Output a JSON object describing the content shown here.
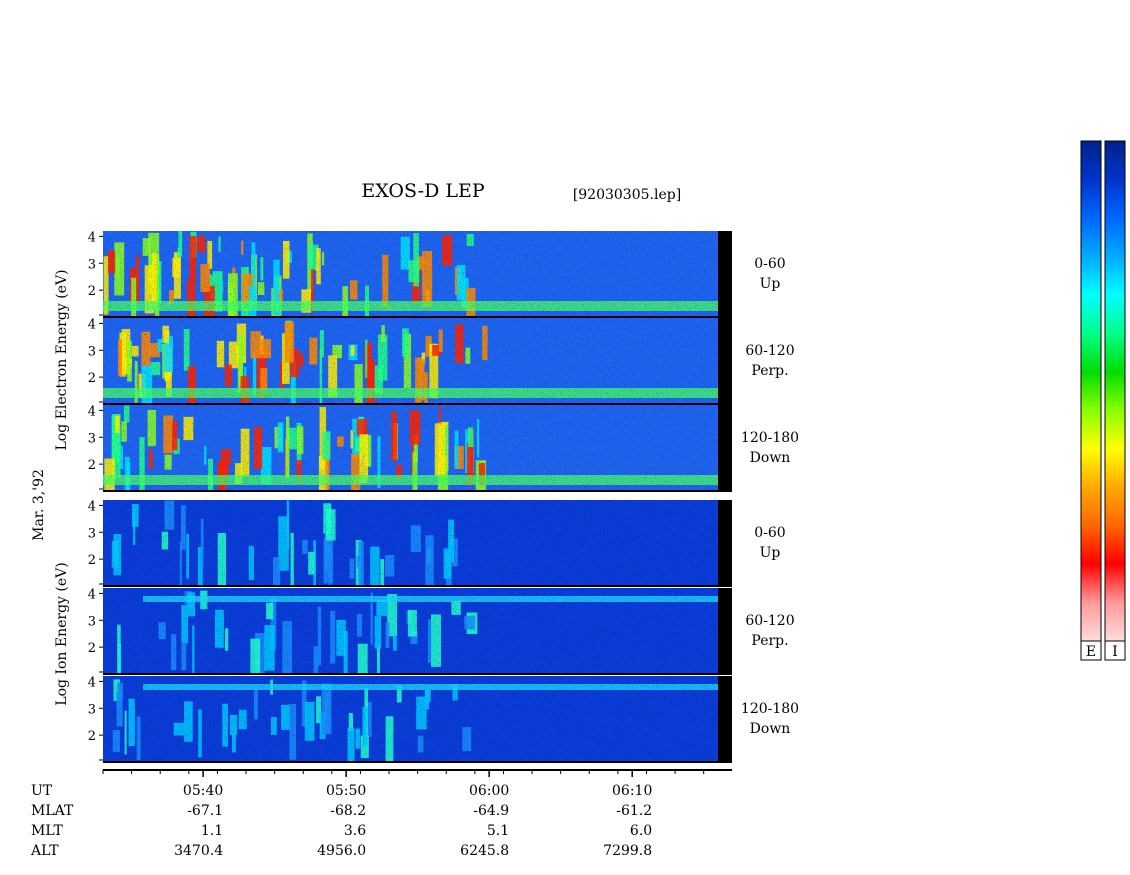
{
  "title": "EXOS-D LEP",
  "file_label": "[92030305.lep]",
  "date_label": "Mar. 3,'92",
  "electron_ylabel": "Log Electron Energy (eV)",
  "ion_ylabel": "Log Ion Energy (eV)",
  "colorbar": {
    "labels": [
      "E",
      "I"
    ],
    "stops": [
      "#002288",
      "#0033cc",
      "#0066ff",
      "#00aaff",
      "#00ffff",
      "#00ff88",
      "#00dd00",
      "#88ff00",
      "#ffff00",
      "#ffaa00",
      "#ff6600",
      "#ff0000",
      "#ff9999",
      "#ffdddd"
    ]
  },
  "chart_data": {
    "type": "heatmap",
    "panels": [
      {
        "species": "Electron",
        "pitch_angle": "0-60",
        "direction": "Up"
      },
      {
        "species": "Electron",
        "pitch_angle": "60-120",
        "direction": "Perp."
      },
      {
        "species": "Electron",
        "pitch_angle": "120-180",
        "direction": "Down"
      },
      {
        "species": "Ion",
        "pitch_angle": "0-60",
        "direction": "Up"
      },
      {
        "species": "Ion",
        "pitch_angle": "60-120",
        "direction": "Perp."
      },
      {
        "species": "Ion",
        "pitch_angle": "120-180",
        "direction": "Down"
      }
    ],
    "y_ticks": [
      "4",
      "3",
      "2"
    ],
    "ylim": [
      1,
      4.2
    ],
    "time_axis": {
      "ticks": [
        "05:40",
        "05:50",
        "06:00",
        "06:10"
      ],
      "range": [
        "05:33",
        "06:16"
      ]
    },
    "ephemeris": {
      "row_labels": [
        "UT",
        "MLAT",
        "MLT",
        "ALT"
      ],
      "MLAT": [
        "-67.1",
        "-68.2",
        "-64.9",
        "-61.2"
      ],
      "MLT": [
        "1.1",
        "3.6",
        "5.1",
        "6.0"
      ],
      "ALT": [
        "3470.4",
        "4956.0",
        "6245.8",
        "7299.8"
      ]
    }
  }
}
